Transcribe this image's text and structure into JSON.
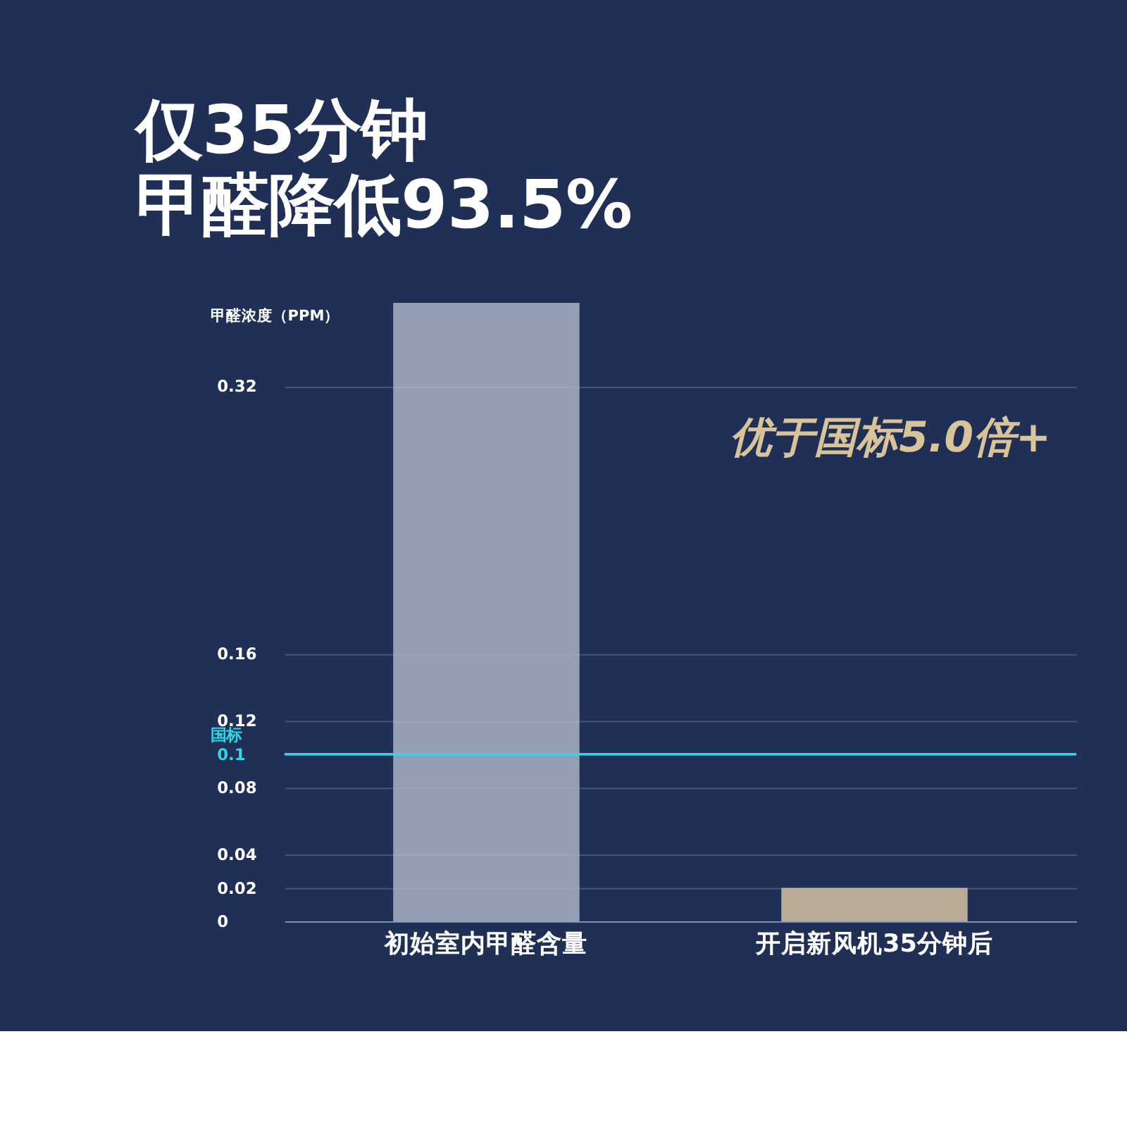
{
  "chart_data": {
    "type": "bar",
    "title": "仅35分钟",
    "subtitle": "甲醛降低93.5%",
    "ylabel": "甲醛浓度（PPM）",
    "categories": [
      "初始室内甲醛含量",
      "开启新风机35分钟后"
    ],
    "values": [
      0.37,
      0.02
    ],
    "colors": [
      "#a9b3c8",
      "#d3c2a2"
    ],
    "ylim": [
      0,
      0.37
    ],
    "yticks": [
      0,
      0.02,
      0.04,
      0.08,
      0.1,
      0.12,
      0.16,
      0.32
    ],
    "grid": "y",
    "ref_lines": [
      {
        "axis": "y",
        "value": 0.1,
        "label": "国标",
        "color": "#2fd6e6"
      }
    ],
    "annotations": [
      "优于国标5.0倍+"
    ]
  }
}
